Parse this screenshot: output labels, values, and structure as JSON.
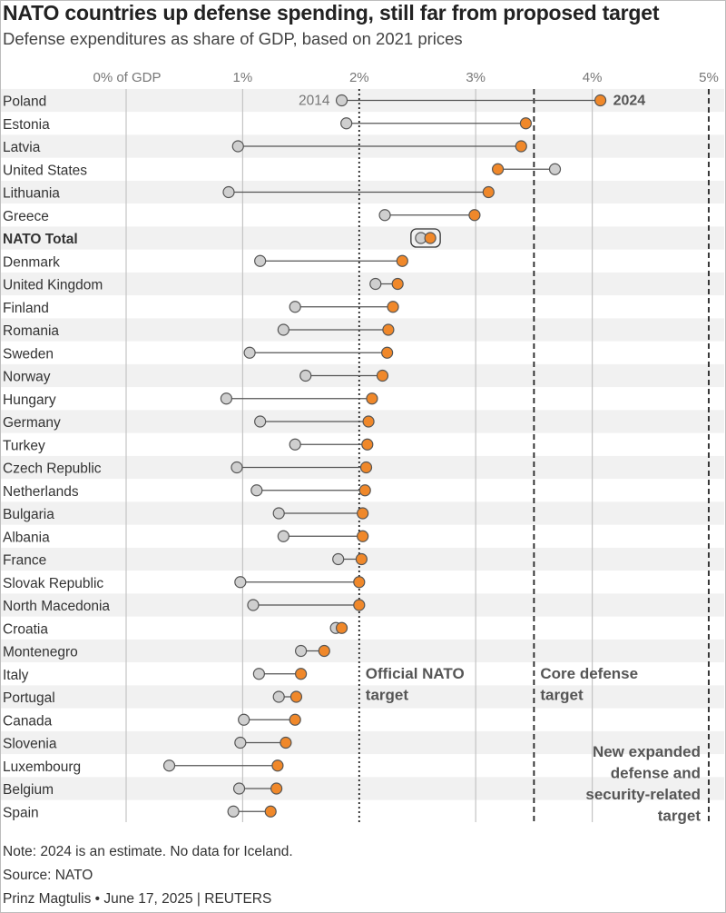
{
  "title": "NATO countries up defense spending, still far from proposed target",
  "subtitle": "Defense expenditures as share of GDP, based on 2021 prices",
  "chart_data": {
    "type": "dumbbell",
    "x_ticks": [
      {
        "value": 0,
        "label": "0% of GDP"
      },
      {
        "value": 1,
        "label": "1%"
      },
      {
        "value": 2,
        "label": "2%"
      },
      {
        "value": 3,
        "label": "3%"
      },
      {
        "value": 4,
        "label": "4%"
      },
      {
        "value": 5,
        "label": "5%"
      }
    ],
    "xlim": [
      0,
      5
    ],
    "series": [
      {
        "name": "2014",
        "color": "#cfcfcf"
      },
      {
        "name": "2024",
        "color": "#f0882a"
      }
    ],
    "rows": [
      {
        "country": "Poland",
        "y2014": 1.85,
        "y2024": 4.07
      },
      {
        "country": "Estonia",
        "y2014": 1.89,
        "y2024": 3.43
      },
      {
        "country": "Latvia",
        "y2014": 0.96,
        "y2024": 3.39
      },
      {
        "country": "United States",
        "y2014": 3.68,
        "y2024": 3.19
      },
      {
        "country": "Lithuania",
        "y2014": 0.88,
        "y2024": 3.11
      },
      {
        "country": "Greece",
        "y2014": 2.22,
        "y2024": 2.99
      },
      {
        "country": "NATO Total",
        "y2014": 2.53,
        "y2024": 2.61,
        "bold": true
      },
      {
        "country": "Denmark",
        "y2014": 1.15,
        "y2024": 2.37
      },
      {
        "country": "United Kingdom",
        "y2014": 2.14,
        "y2024": 2.33
      },
      {
        "country": "Finland",
        "y2014": 1.45,
        "y2024": 2.29
      },
      {
        "country": "Romania",
        "y2014": 1.35,
        "y2024": 2.25
      },
      {
        "country": "Sweden",
        "y2014": 1.06,
        "y2024": 2.24
      },
      {
        "country": "Norway",
        "y2014": 1.54,
        "y2024": 2.2
      },
      {
        "country": "Hungary",
        "y2014": 0.86,
        "y2024": 2.11
      },
      {
        "country": "Germany",
        "y2014": 1.15,
        "y2024": 2.08
      },
      {
        "country": "Turkey",
        "y2014": 1.45,
        "y2024": 2.07
      },
      {
        "country": "Czech Republic",
        "y2014": 0.95,
        "y2024": 2.06
      },
      {
        "country": "Netherlands",
        "y2014": 1.12,
        "y2024": 2.05
      },
      {
        "country": "Bulgaria",
        "y2014": 1.31,
        "y2024": 2.03
      },
      {
        "country": "Albania",
        "y2014": 1.35,
        "y2024": 2.03
      },
      {
        "country": "France",
        "y2014": 1.82,
        "y2024": 2.02
      },
      {
        "country": "Slovak Republic",
        "y2014": 0.98,
        "y2024": 2.0
      },
      {
        "country": "North Macedonia",
        "y2014": 1.09,
        "y2024": 2.0
      },
      {
        "country": "Croatia",
        "y2014": 1.8,
        "y2024": 1.85
      },
      {
        "country": "Montenegro",
        "y2014": 1.5,
        "y2024": 1.7
      },
      {
        "country": "Italy",
        "y2014": 1.14,
        "y2024": 1.5
      },
      {
        "country": "Portugal",
        "y2014": 1.31,
        "y2024": 1.46
      },
      {
        "country": "Canada",
        "y2014": 1.01,
        "y2024": 1.45
      },
      {
        "country": "Slovenia",
        "y2014": 0.98,
        "y2024": 1.37
      },
      {
        "country": "Luxembourg",
        "y2014": 0.37,
        "y2024": 1.3
      },
      {
        "country": "Belgium",
        "y2014": 0.97,
        "y2024": 1.29
      },
      {
        "country": "Spain",
        "y2014": 0.92,
        "y2024": 1.24
      }
    ],
    "reference_lines": [
      {
        "value": 2,
        "style": "dotted",
        "label": [
          "Official NATO",
          "target"
        ],
        "align": "left"
      },
      {
        "value": 3.5,
        "style": "dashed",
        "label": [
          "Core defense",
          "target"
        ],
        "align": "left"
      },
      {
        "value": 5,
        "style": "dashed",
        "label": [
          "New expanded",
          "defense and",
          "security-related",
          "target"
        ],
        "align": "right"
      }
    ]
  },
  "footer": {
    "note": "Note: 2024 is an estimate. No data for Iceland.",
    "source": "Source: NATO",
    "credit": "Prinz Magtulis • June 17, 2025 | REUTERS"
  }
}
